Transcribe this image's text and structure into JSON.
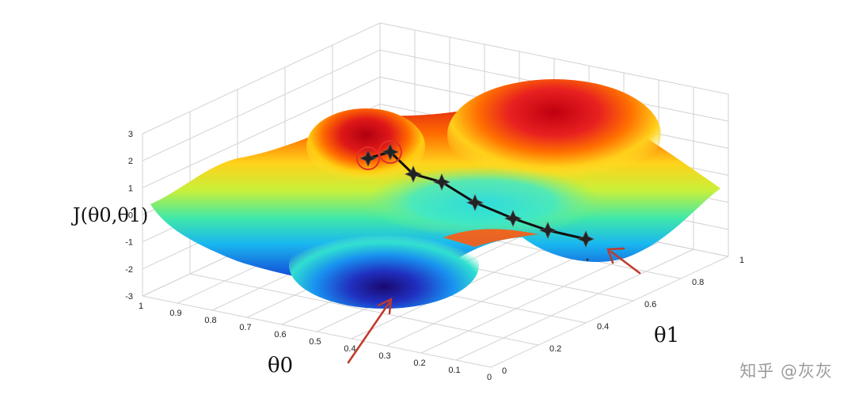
{
  "chart_data": {
    "type": "surface",
    "zlabel": "J(θ0,θ1)",
    "xlabel": "θ0",
    "ylabel": "θ1",
    "zlim": [
      -3,
      3
    ],
    "z_ticks": [
      "3",
      "2",
      "1",
      "0",
      "-1",
      "-2",
      "-3"
    ],
    "theta0_ticks": [
      "1",
      "0.9",
      "0.8",
      "0.7",
      "0.6",
      "0.5",
      "0.4",
      "0.3",
      "0.2",
      "0.1",
      "0"
    ],
    "theta1_ticks": [
      "0",
      "0.2",
      "0.4",
      "0.6",
      "0.8",
      "1"
    ],
    "grid": true,
    "colormap": "jet",
    "descent_path": {
      "theta0": [
        0.66,
        0.6,
        0.55,
        0.5,
        0.46,
        0.42,
        0.38,
        0.32
      ],
      "theta1": [
        0.0,
        0.18,
        0.28,
        0.38,
        0.5,
        0.6,
        0.7,
        0.8
      ],
      "J": [
        2.0,
        2.3,
        1.4,
        1.1,
        0.4,
        -0.4,
        -0.7,
        -1.1
      ]
    }
  },
  "watermark": "知乎 @灰灰",
  "colors": {
    "path": "#111111",
    "marker_circle": "#e0302a",
    "arrow": "#c0392b"
  }
}
